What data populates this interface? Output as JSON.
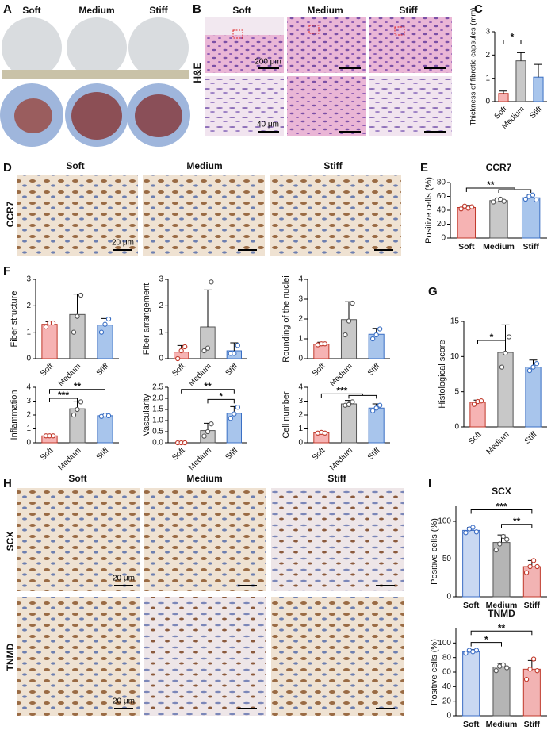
{
  "figure": {
    "letters": [
      "A",
      "B",
      "C",
      "D",
      "E",
      "F",
      "G",
      "H",
      "I"
    ],
    "a": {
      "columns": [
        "Soft",
        "Medium",
        "Stiff"
      ]
    },
    "b": {
      "columns": [
        "Soft",
        "Medium",
        "Stiff"
      ],
      "row": "H&E",
      "scale_top": "200 μm",
      "scale_bottom": "40 μm"
    },
    "d": {
      "columns": [
        "Soft",
        "Medium",
        "Stiff"
      ],
      "row": "CCR7",
      "scale": "20 μm"
    },
    "h": {
      "columns": [
        "Soft",
        "Medium",
        "Stiff"
      ],
      "rows": [
        "SCX",
        "TNMD"
      ],
      "scales": [
        "20 μm",
        "20 μm"
      ]
    }
  },
  "chart_data": [
    {
      "type": "bar",
      "ylabel": "Thickness of fibrotic capsules (mm)",
      "categories": [
        "Soft",
        "Medium",
        "Stiff"
      ],
      "values": [
        0.35,
        1.75,
        1.05
      ],
      "errors": [
        0.1,
        0.35,
        0.55
      ],
      "colors": [
        "#f6b3b3",
        "#c8c8c8",
        "#a8c5ec"
      ],
      "edge_colors": [
        "#c0392b",
        "#555555",
        "#3a6fc4"
      ],
      "ylim": [
        0,
        3
      ],
      "yticks": [
        0,
        1,
        2,
        3
      ],
      "annotations": [
        "*"
      ]
    },
    {
      "type": "bar",
      "title": "CCR7",
      "ylabel": "Positive cells (%)",
      "categories": [
        "Soft",
        "Medium",
        "Stiff"
      ],
      "values": [
        44,
        54,
        58
      ],
      "errors": [
        3,
        3,
        4
      ],
      "points": [
        [
          42,
          46,
          43,
          45
        ],
        [
          52,
          55,
          56,
          53
        ],
        [
          56,
          60,
          62,
          55
        ]
      ],
      "colors": [
        "#f6b3b3",
        "#c8c8c8",
        "#a8c5ec"
      ],
      "edge_colors": [
        "#c0392b",
        "#555555",
        "#3a6fc4"
      ],
      "ylim": [
        0,
        80
      ],
      "yticks": [
        0,
        20,
        40,
        60,
        80
      ],
      "annotations": [
        "**"
      ]
    },
    {
      "type": "bar",
      "ylabel": "Fiber structure",
      "categories": [
        "Soft",
        "Medium",
        "Stiff"
      ],
      "values": [
        1.3,
        1.67,
        1.27
      ],
      "errors": [
        0.1,
        0.77,
        0.25
      ],
      "points": [
        [
          1.2,
          1.35,
          1.35
        ],
        [
          1.0,
          1.6,
          2.4
        ],
        [
          1.0,
          1.3,
          1.5
        ]
      ],
      "colors": [
        "#f6b3b3",
        "#c8c8c8",
        "#a8c5ec"
      ],
      "edge_colors": [
        "#c0392b",
        "#555555",
        "#3a6fc4"
      ],
      "ylim": [
        0,
        3
      ],
      "yticks": [
        0,
        1,
        2,
        3
      ],
      "annotations": []
    },
    {
      "type": "bar",
      "ylabel": "Fiber arrangement",
      "categories": [
        "Soft",
        "Medium",
        "Stiff"
      ],
      "values": [
        0.25,
        1.2,
        0.3
      ],
      "errors": [
        0.25,
        1.4,
        0.3
      ],
      "points": [
        [
          0.0,
          0.3,
          0.45
        ],
        [
          0.3,
          0.4,
          2.9
        ],
        [
          0.2,
          0.2,
          0.5
        ]
      ],
      "colors": [
        "#f6b3b3",
        "#c8c8c8",
        "#a8c5ec"
      ],
      "edge_colors": [
        "#c0392b",
        "#555555",
        "#3a6fc4"
      ],
      "ylim": [
        0,
        3
      ],
      "yticks": [
        0,
        1,
        2,
        3
      ],
      "annotations": []
    },
    {
      "type": "bar",
      "ylabel": "Rounding of the nuclei",
      "categories": [
        "Soft",
        "Medium",
        "Stiff"
      ],
      "values": [
        0.73,
        1.97,
        1.23
      ],
      "errors": [
        0.1,
        0.9,
        0.3
      ],
      "points": [
        [
          0.7,
          0.75,
          0.75
        ],
        [
          1.2,
          1.9,
          2.8
        ],
        [
          1.0,
          1.2,
          1.5
        ]
      ],
      "colors": [
        "#f6b3b3",
        "#c8c8c8",
        "#a8c5ec"
      ],
      "edge_colors": [
        "#c0392b",
        "#555555",
        "#3a6fc4"
      ],
      "ylim": [
        0,
        4
      ],
      "yticks": [
        0,
        1,
        2,
        3,
        4
      ],
      "annotations": []
    },
    {
      "type": "bar",
      "ylabel": "Inflammation",
      "categories": [
        "Soft",
        "Medium",
        "Stiff"
      ],
      "values": [
        0.5,
        2.45,
        1.95
      ],
      "errors": [
        0.03,
        0.5,
        0.05
      ],
      "points": [
        [
          0.5,
          0.5,
          0.5
        ],
        [
          2.0,
          2.4,
          2.95
        ],
        [
          1.9,
          2.0,
          1.95
        ]
      ],
      "colors": [
        "#f6b3b3",
        "#c8c8c8",
        "#a8c5ec"
      ],
      "edge_colors": [
        "#c0392b",
        "#555555",
        "#3a6fc4"
      ],
      "ylim": [
        0,
        4
      ],
      "yticks": [
        0,
        1,
        2,
        3,
        4
      ],
      "annotations": [
        "***",
        "**"
      ]
    },
    {
      "type": "bar",
      "ylabel": "Vascularity",
      "categories": [
        "Soft",
        "Medium",
        "Stiff"
      ],
      "values": [
        0,
        0.55,
        1.33
      ],
      "errors": [
        0,
        0.33,
        0.3
      ],
      "points": [
        [
          0,
          0,
          0
        ],
        [
          0.3,
          0.5,
          0.85
        ],
        [
          1.1,
          1.3,
          1.6
        ]
      ],
      "colors": [
        "#f6b3b3",
        "#c8c8c8",
        "#a8c5ec"
      ],
      "edge_colors": [
        "#c0392b",
        "#555555",
        "#3a6fc4"
      ],
      "ylim": [
        0,
        2.5
      ],
      "yticks": [
        {
          "value": 0,
          "label": "0.0"
        },
        0.5,
        {
          "value": 1,
          "label": "1.0"
        },
        1.5,
        {
          "value": 2,
          "label": "2.0"
        },
        2.5
      ],
      "annotations": [
        "**",
        "*"
      ]
    },
    {
      "type": "bar",
      "ylabel": "Cell number",
      "categories": [
        "Soft",
        "Medium",
        "Stiff"
      ],
      "values": [
        0.72,
        2.8,
        2.5
      ],
      "errors": [
        0.08,
        0.25,
        0.3
      ],
      "points": [
        [
          0.7,
          0.75,
          0.7
        ],
        [
          2.7,
          2.75,
          2.95
        ],
        [
          2.3,
          2.5,
          2.7
        ]
      ],
      "colors": [
        "#f6b3b3",
        "#c8c8c8",
        "#a8c5ec"
      ],
      "edge_colors": [
        "#c0392b",
        "#555555",
        "#3a6fc4"
      ],
      "ylim": [
        0,
        4
      ],
      "yticks": [
        0,
        1,
        2,
        3,
        4
      ],
      "annotations": [
        "***"
      ]
    },
    {
      "type": "bar",
      "ylabel": "Histological score",
      "categories": [
        "Soft",
        "Medium",
        "Stiff"
      ],
      "values": [
        3.5,
        10.6,
        8.5
      ],
      "errors": [
        0.3,
        3.9,
        1
      ],
      "points": [
        [
          3.2,
          3.6,
          3.7
        ],
        [
          8.5,
          10.5,
          12.8
        ],
        [
          8.0,
          8.5,
          9.0
        ]
      ],
      "colors": [
        "#f6b3b3",
        "#c8c8c8",
        "#a8c5ec"
      ],
      "edge_colors": [
        "#c0392b",
        "#555555",
        "#3a6fc4"
      ],
      "ylim": [
        0,
        15
      ],
      "yticks": [
        0,
        5,
        10,
        15
      ],
      "annotations": [
        "*"
      ]
    },
    {
      "type": "bar",
      "title": "SCX",
      "ylabel": "Positive cells (%)",
      "categories": [
        "Soft",
        "Medium",
        "Stiff"
      ],
      "values": [
        88,
        72,
        40
      ],
      "errors": [
        4,
        10,
        8
      ],
      "points": [
        [
          85,
          90,
          92,
          86
        ],
        [
          62,
          70,
          80,
          76
        ],
        [
          32,
          40,
          48,
          40
        ]
      ],
      "colors": [
        "#c9d8f2",
        "#b5b5b5",
        "#f2b3b3"
      ],
      "edge_colors": [
        "#3b6cc4",
        "#555555",
        "#c0392b"
      ],
      "ylim": [
        0,
        120
      ],
      "yticks": [
        0,
        50,
        100
      ],
      "annotations": [
        "***",
        "**"
      ]
    },
    {
      "type": "bar",
      "title": "TNMD",
      "ylabel": "Positive cells (%)",
      "categories": [
        "Soft",
        "Medium",
        "Stiff"
      ],
      "values": [
        88,
        67,
        64
      ],
      "errors": [
        3,
        5,
        12
      ],
      "points": [
        [
          86,
          90,
          88,
          90
        ],
        [
          62,
          68,
          70,
          66
        ],
        [
          50,
          64,
          78,
          62
        ]
      ],
      "colors": [
        "#c9d8f2",
        "#b5b5b5",
        "#f2b3b3"
      ],
      "edge_colors": [
        "#3b6cc4",
        "#555555",
        "#c0392b"
      ],
      "ylim": [
        0,
        120
      ],
      "yticks": [
        0,
        20,
        40,
        60,
        80,
        100
      ],
      "annotations": [
        "*",
        "**"
      ]
    }
  ]
}
